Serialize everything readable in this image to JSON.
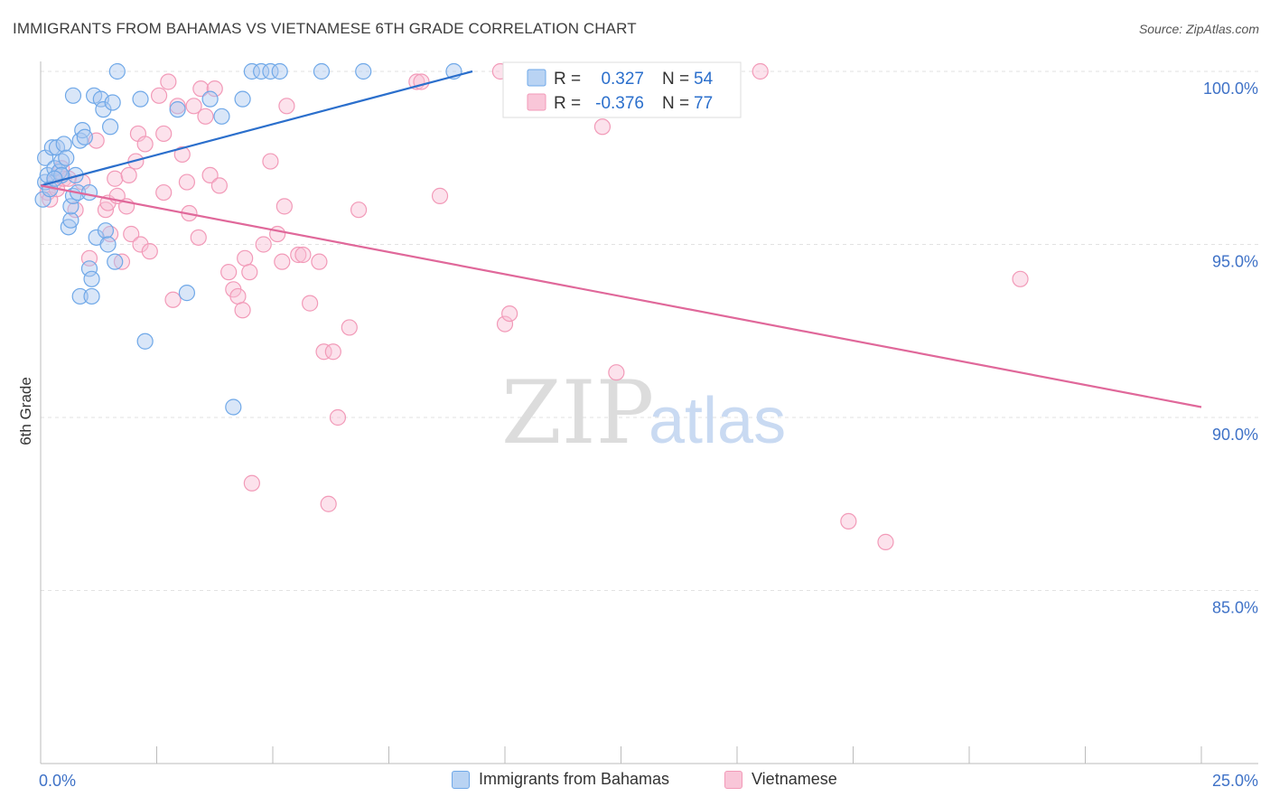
{
  "title": "IMMIGRANTS FROM BAHAMAS VS VIETNAMESE 6TH GRADE CORRELATION CHART",
  "source": "Source: ZipAtlas.com",
  "watermark": {
    "zip": "ZIP",
    "atlas": "atlas"
  },
  "colors": {
    "blue": "#6fa8e8",
    "pink": "#f29ab8",
    "blue_line": "#2b6fcc",
    "pink_line": "#e0689a",
    "tick_label": "#3f72c7"
  },
  "stats_legend": [
    {
      "r_label": "R =",
      "r_value": "0.327",
      "n_label": "N =",
      "n_value": "54",
      "color": "blue"
    },
    {
      "r_label": "R =",
      "r_value": "-0.376",
      "n_label": "N =",
      "n_value": "77",
      "color": "pink"
    }
  ],
  "chart_data": {
    "type": "scatter",
    "title": "IMMIGRANTS FROM BAHAMAS VS VIETNAMESE 6TH GRADE CORRELATION CHART",
    "xlabel": "",
    "ylabel": "6th Grade",
    "xlim": [
      0,
      25
    ],
    "ylim": [
      80.2,
      100.8
    ],
    "x_tick_labels": [
      "0.0%",
      "25.0%"
    ],
    "y_ticks": [
      85,
      90,
      95,
      100
    ],
    "y_tick_labels": [
      "85.0%",
      "90.0%",
      "95.0%",
      "100.0%"
    ],
    "grid": true,
    "legend_position": "bottom",
    "series": [
      {
        "name": "Immigrants from Bahamas",
        "color": "blue",
        "trend": {
          "x": [
            0.0,
            9.3
          ],
          "y": [
            96.7,
            100.0
          ]
        },
        "points": [
          [
            0.05,
            96.3
          ],
          [
            0.1,
            97.5
          ],
          [
            0.1,
            96.8
          ],
          [
            0.15,
            97.0
          ],
          [
            0.2,
            96.6
          ],
          [
            0.25,
            97.8
          ],
          [
            0.3,
            97.2
          ],
          [
            0.35,
            97.8
          ],
          [
            0.4,
            97.1
          ],
          [
            0.45,
            97.4
          ],
          [
            0.5,
            97.9
          ],
          [
            0.55,
            97.5
          ],
          [
            0.6,
            95.5
          ],
          [
            0.65,
            95.7
          ],
          [
            0.65,
            96.1
          ],
          [
            0.7,
            96.4
          ],
          [
            0.7,
            99.3
          ],
          [
            0.75,
            97.0
          ],
          [
            0.8,
            96.5
          ],
          [
            0.85,
            98.0
          ],
          [
            0.85,
            93.5
          ],
          [
            0.9,
            98.3
          ],
          [
            0.95,
            98.1
          ],
          [
            1.05,
            96.5
          ],
          [
            1.05,
            94.3
          ],
          [
            1.1,
            93.5
          ],
          [
            1.1,
            94.0
          ],
          [
            1.15,
            99.3
          ],
          [
            1.2,
            95.2
          ],
          [
            1.3,
            99.2
          ],
          [
            1.35,
            98.9
          ],
          [
            1.4,
            95.4
          ],
          [
            1.45,
            95.0
          ],
          [
            1.5,
            98.4
          ],
          [
            1.55,
            99.1
          ],
          [
            1.6,
            94.5
          ],
          [
            1.65,
            100.0
          ],
          [
            2.15,
            99.2
          ],
          [
            2.25,
            92.2
          ],
          [
            2.95,
            98.9
          ],
          [
            3.15,
            93.6
          ],
          [
            3.65,
            99.2
          ],
          [
            3.9,
            98.7
          ],
          [
            4.15,
            90.3
          ],
          [
            4.35,
            99.2
          ],
          [
            4.55,
            100.0
          ],
          [
            4.75,
            100.0
          ],
          [
            4.95,
            100.0
          ],
          [
            5.15,
            100.0
          ],
          [
            6.05,
            100.0
          ],
          [
            6.95,
            100.0
          ],
          [
            8.9,
            100.0
          ],
          [
            0.45,
            97.0
          ],
          [
            0.3,
            96.9
          ]
        ]
      },
      {
        "name": "Vietnamese",
        "color": "pink",
        "trend": {
          "x": [
            0.0,
            25.0
          ],
          "y": [
            96.7,
            90.3
          ]
        },
        "points": [
          [
            0.15,
            96.5
          ],
          [
            0.2,
            96.3
          ],
          [
            0.3,
            96.8
          ],
          [
            0.35,
            96.6
          ],
          [
            0.45,
            97.2
          ],
          [
            0.5,
            96.9
          ],
          [
            0.6,
            96.9
          ],
          [
            0.75,
            96.0
          ],
          [
            0.9,
            96.8
          ],
          [
            1.05,
            94.6
          ],
          [
            1.2,
            98.0
          ],
          [
            1.4,
            96.0
          ],
          [
            1.45,
            96.2
          ],
          [
            1.5,
            95.3
          ],
          [
            1.6,
            96.9
          ],
          [
            1.65,
            96.4
          ],
          [
            1.75,
            94.5
          ],
          [
            1.85,
            96.1
          ],
          [
            1.9,
            97.0
          ],
          [
            1.95,
            95.3
          ],
          [
            2.05,
            97.4
          ],
          [
            2.1,
            98.2
          ],
          [
            2.15,
            95.0
          ],
          [
            2.25,
            97.9
          ],
          [
            2.35,
            94.8
          ],
          [
            2.55,
            99.3
          ],
          [
            2.65,
            98.2
          ],
          [
            2.65,
            96.5
          ],
          [
            2.75,
            99.7
          ],
          [
            2.85,
            93.4
          ],
          [
            2.95,
            99.0
          ],
          [
            3.05,
            97.6
          ],
          [
            3.15,
            96.8
          ],
          [
            3.2,
            95.9
          ],
          [
            3.3,
            99.0
          ],
          [
            3.4,
            95.2
          ],
          [
            3.45,
            99.5
          ],
          [
            3.55,
            98.7
          ],
          [
            3.65,
            97.0
          ],
          [
            3.75,
            99.5
          ],
          [
            3.85,
            96.7
          ],
          [
            4.05,
            94.2
          ],
          [
            4.15,
            93.7
          ],
          [
            4.25,
            93.5
          ],
          [
            4.35,
            93.1
          ],
          [
            4.4,
            94.6
          ],
          [
            4.5,
            94.2
          ],
          [
            4.55,
            88.1
          ],
          [
            4.8,
            95.0
          ],
          [
            4.95,
            97.4
          ],
          [
            5.1,
            95.3
          ],
          [
            5.2,
            94.5
          ],
          [
            5.25,
            96.1
          ],
          [
            5.3,
            99.0
          ],
          [
            5.55,
            94.7
          ],
          [
            5.65,
            94.7
          ],
          [
            5.8,
            93.3
          ],
          [
            6.0,
            94.5
          ],
          [
            6.1,
            91.9
          ],
          [
            6.2,
            87.5
          ],
          [
            6.3,
            91.9
          ],
          [
            6.4,
            90.0
          ],
          [
            6.65,
            92.6
          ],
          [
            6.85,
            96.0
          ],
          [
            8.1,
            99.7
          ],
          [
            8.2,
            99.7
          ],
          [
            8.6,
            96.4
          ],
          [
            9.9,
            100.0
          ],
          [
            10.0,
            92.7
          ],
          [
            10.1,
            93.0
          ],
          [
            10.8,
            99.7
          ],
          [
            12.1,
            98.4
          ],
          [
            12.4,
            91.3
          ],
          [
            15.5,
            100.0
          ],
          [
            17.4,
            87.0
          ],
          [
            18.2,
            86.4
          ],
          [
            21.1,
            94.0
          ]
        ]
      }
    ]
  }
}
